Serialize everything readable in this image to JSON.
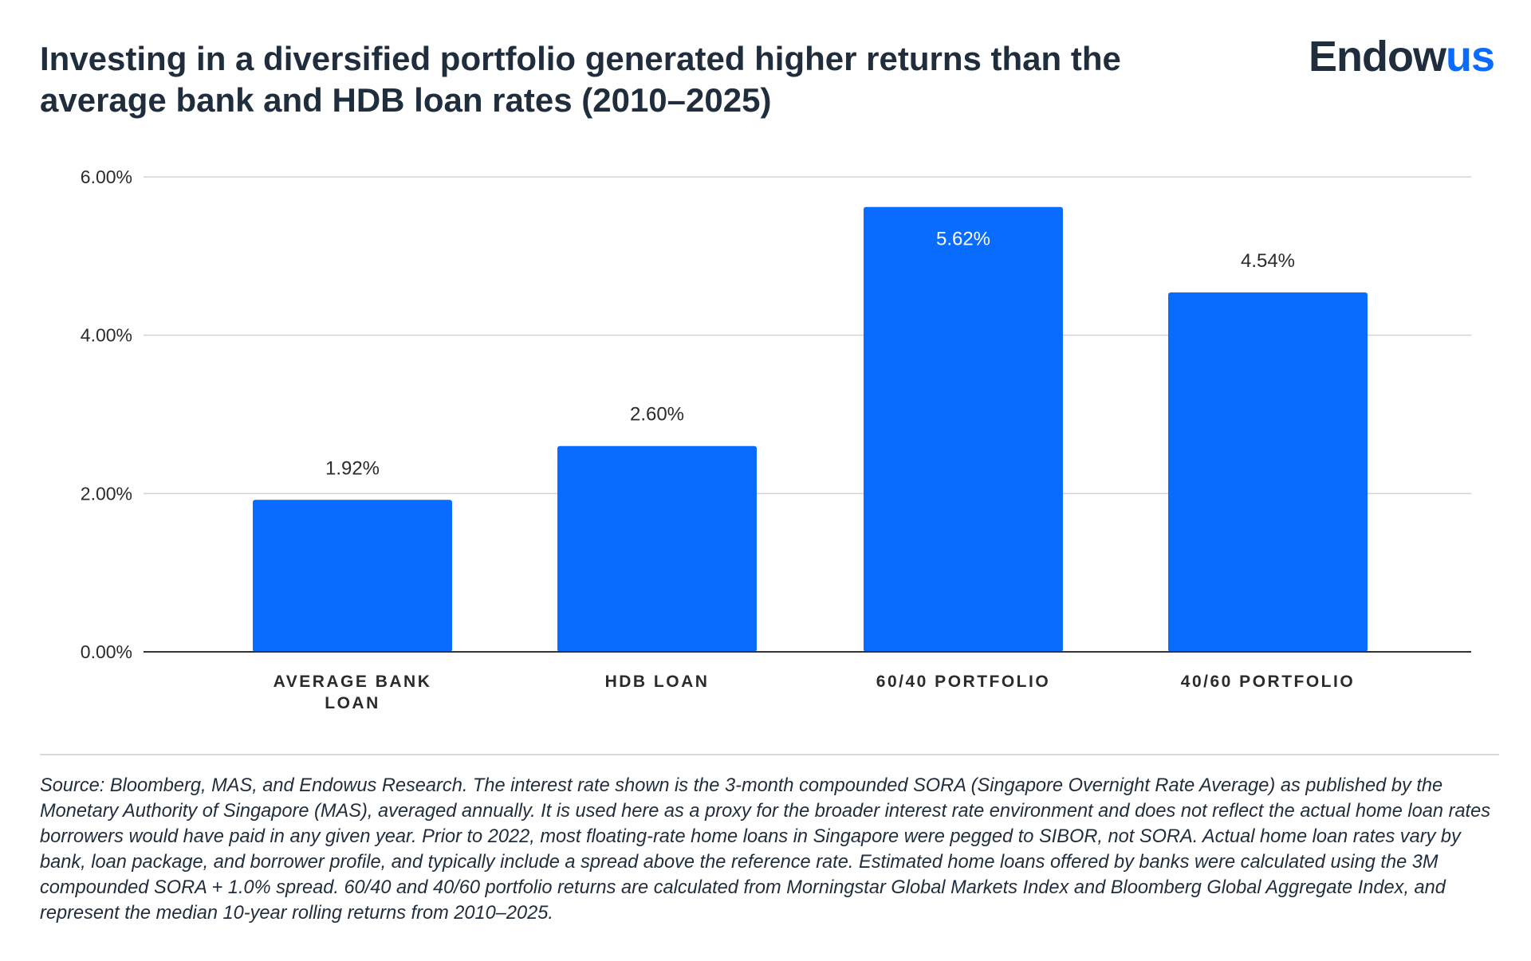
{
  "header": {
    "title": "Investing in a diversified portfolio generated higher returns than the average bank and HDB loan rates (2010–2025)",
    "logo_main": "Endow",
    "logo_accent": "us"
  },
  "colors": {
    "bar": "#0a6cff",
    "title": "#1f2d3d",
    "grid": "#d0d4d9",
    "axis": "#333333"
  },
  "chart_data": {
    "type": "bar",
    "categories": [
      [
        "AVERAGE BANK",
        "LOAN"
      ],
      [
        "HDB LOAN"
      ],
      [
        "60/40 PORTFOLIO"
      ],
      [
        "40/60 PORTFOLIO"
      ]
    ],
    "values": [
      1.92,
      2.6,
      5.62,
      4.54
    ],
    "data_labels": [
      "1.92%",
      "2.60%",
      "5.62%",
      "4.54%"
    ],
    "label_inside_bar": [
      false,
      false,
      true,
      false
    ],
    "yticks": [
      0,
      2,
      4,
      6
    ],
    "ytick_labels": [
      "0.00%",
      "2.00%",
      "4.00%",
      "6.00%"
    ],
    "ylim": [
      0,
      6
    ],
    "grid": true,
    "legend": "none"
  },
  "footer": {
    "source": "Source: Bloomberg, MAS, and Endowus Research. The interest rate shown is the 3-month compounded SORA (Singapore Overnight Rate Average) as published by the Monetary Authority of Singapore (MAS), averaged annually. It is used here as a proxy for the broader interest rate environment and does not reflect the actual home loan rates borrowers would have paid in any given year. Prior to 2022, most floating-rate home loans in Singapore were pegged to SIBOR, not SORA. Actual home loan rates vary by bank, loan package, and borrower profile, and typically include a spread above the reference rate. Estimated home loans offered by banks were calculated using the 3M compounded SORA + 1.0% spread. 60/40 and 40/60 portfolio returns are calculated from Morningstar Global Markets Index and Bloomberg Global Aggregate Index, and represent the median 10-year rolling returns from 2010–2025."
  }
}
